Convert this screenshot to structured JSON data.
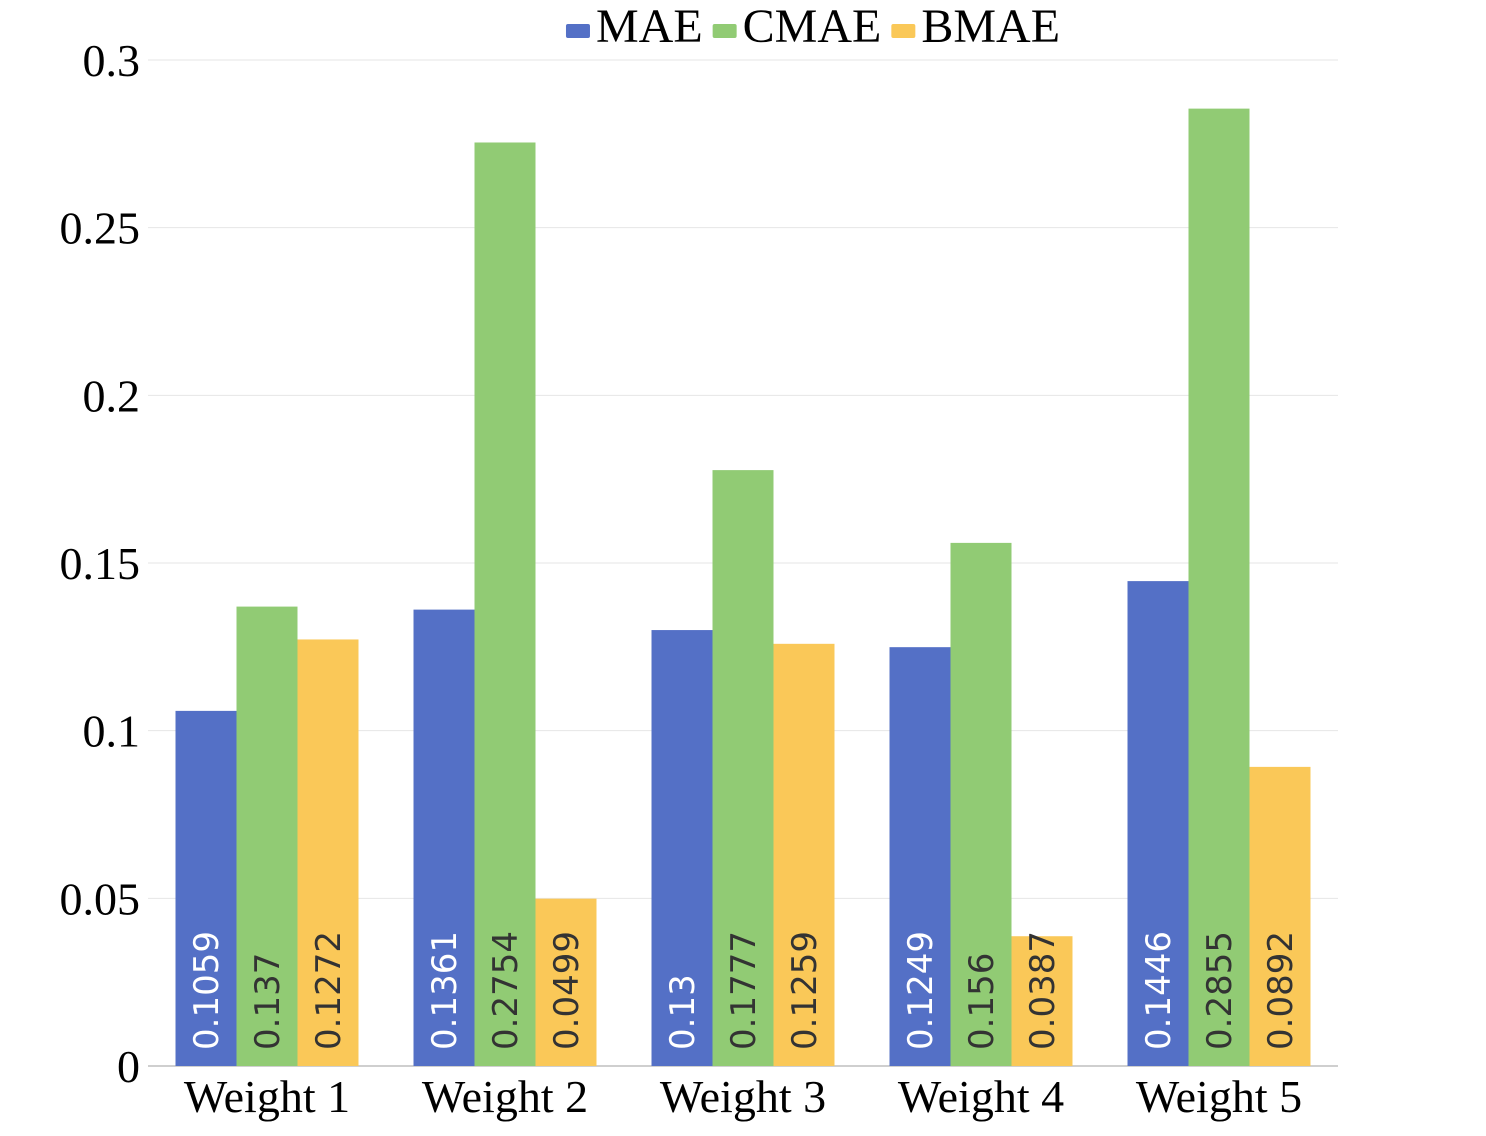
{
  "chart_data": {
    "type": "bar",
    "title": "",
    "xlabel": "",
    "ylabel": "",
    "ylim": [
      0,
      0.3
    ],
    "yticks": [
      0,
      0.05,
      0.1,
      0.15,
      0.2,
      0.25,
      0.3
    ],
    "ytick_labels": [
      "0",
      "0.05",
      "0.1",
      "0.15",
      "0.2",
      "0.25",
      "0.3"
    ],
    "grid": true,
    "legend_position": "top-center",
    "categories": [
      "Weight 1",
      "Weight 2",
      "Weight 3",
      "Weight 4",
      "Weight 5"
    ],
    "series": [
      {
        "name": "MAE",
        "color": "#5470c6",
        "label_color": "#ffffff",
        "values": [
          0.1059,
          0.1361,
          0.13,
          0.1249,
          0.1446
        ],
        "labels": [
          "0.1059",
          "0.1361",
          "0.13",
          "0.1249",
          "0.1446"
        ]
      },
      {
        "name": "CMAE",
        "color": "#91cb74",
        "label_color": "#333333",
        "values": [
          0.137,
          0.2754,
          0.1777,
          0.156,
          0.2855
        ],
        "labels": [
          "0.137",
          "0.2754",
          "0.1777",
          "0.156",
          "0.2855"
        ]
      },
      {
        "name": "BMAE",
        "color": "#fac858",
        "label_color": "#333333",
        "values": [
          0.1272,
          0.0499,
          0.1259,
          0.0387,
          0.0892
        ],
        "labels": [
          "0.1272",
          "0.0499",
          "0.1259",
          "0.0387",
          "0.0892"
        ]
      }
    ]
  }
}
